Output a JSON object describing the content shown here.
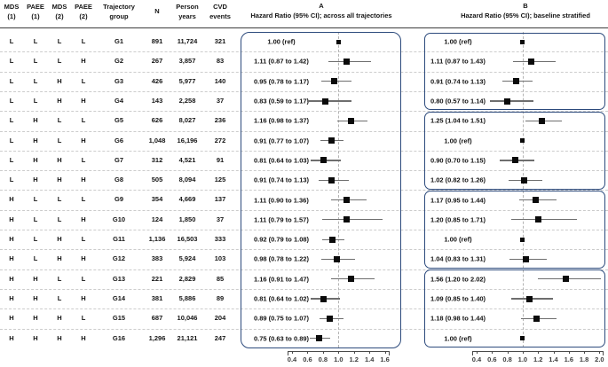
{
  "chart_data": {
    "type": "scatter",
    "subtype": "forest_plot",
    "columns": [
      {
        "line1": "MDS",
        "line2": "(1)"
      },
      {
        "line1": "PAEE",
        "line2": "(1)"
      },
      {
        "line1": "MDS",
        "line2": "(2)"
      },
      {
        "line1": "PAEE",
        "line2": "(2)"
      },
      {
        "line1": "Trajectory",
        "line2": "group"
      },
      {
        "line1": "N",
        "line2": ""
      },
      {
        "line1": "Person",
        "line2": "years"
      },
      {
        "line1": "CVD",
        "line2": "events"
      }
    ],
    "panel_a": {
      "label": "A",
      "subtitle": "Hazard Ratio (95% CI); across all trajectories",
      "axis_ticks": [
        0.4,
        0.6,
        0.8,
        1.0,
        1.2,
        1.4,
        1.6
      ],
      "xlim": [
        0.4,
        1.6
      ],
      "ref_line": 1.0
    },
    "panel_b": {
      "label": "B",
      "subtitle": "Hazard Ratio (95% CI); baseline stratified",
      "axis_ticks": [
        0.4,
        0.6,
        0.8,
        1.0,
        1.2,
        1.4,
        1.6,
        1.8,
        2.0
      ],
      "xlim": [
        0.4,
        2.0
      ],
      "ref_line": 1.0,
      "strata": [
        [
          0,
          3
        ],
        [
          4,
          7
        ],
        [
          8,
          11
        ],
        [
          12,
          15
        ]
      ]
    },
    "rows": [
      {
        "mds1": "L",
        "paee1": "L",
        "mds2": "L",
        "paee2": "L",
        "group": "G1",
        "n": "891",
        "person_years": "11,724",
        "cvd_events": "321",
        "a": {
          "label": "1.00 (ref)",
          "hr": 1.0,
          "lo": null,
          "hi": null,
          "ref": true
        },
        "b": {
          "label": "1.00 (ref)",
          "hr": 1.0,
          "lo": null,
          "hi": null,
          "ref": true
        }
      },
      {
        "mds1": "L",
        "paee1": "L",
        "mds2": "L",
        "paee2": "H",
        "group": "G2",
        "n": "267",
        "person_years": "3,857",
        "cvd_events": "83",
        "a": {
          "label": "1.11 (0.87 to 1.42)",
          "hr": 1.11,
          "lo": 0.87,
          "hi": 1.42,
          "ref": false
        },
        "b": {
          "label": "1.11 (0.87 to 1.43)",
          "hr": 1.11,
          "lo": 0.87,
          "hi": 1.43,
          "ref": false
        }
      },
      {
        "mds1": "L",
        "paee1": "L",
        "mds2": "H",
        "paee2": "L",
        "group": "G3",
        "n": "426",
        "person_years": "5,977",
        "cvd_events": "140",
        "a": {
          "label": "0.95 (0.78 to 1.17)",
          "hr": 0.95,
          "lo": 0.78,
          "hi": 1.17,
          "ref": false
        },
        "b": {
          "label": "0.91 (0.74 to 1.13)",
          "hr": 0.91,
          "lo": 0.74,
          "hi": 1.13,
          "ref": false
        }
      },
      {
        "mds1": "L",
        "paee1": "L",
        "mds2": "H",
        "paee2": "H",
        "group": "G4",
        "n": "143",
        "person_years": "2,258",
        "cvd_events": "37",
        "a": {
          "label": "0.83 (0.59 to 1.17)",
          "hr": 0.83,
          "lo": 0.59,
          "hi": 1.17,
          "ref": false
        },
        "b": {
          "label": "0.80 (0.57 to 1.14)",
          "hr": 0.8,
          "lo": 0.57,
          "hi": 1.14,
          "ref": false
        }
      },
      {
        "mds1": "L",
        "paee1": "H",
        "mds2": "L",
        "paee2": "L",
        "group": "G5",
        "n": "626",
        "person_years": "8,027",
        "cvd_events": "236",
        "a": {
          "label": "1.16 (0.98 to 1.37)",
          "hr": 1.16,
          "lo": 0.98,
          "hi": 1.37,
          "ref": false
        },
        "b": {
          "label": "1.25 (1.04 to 1.51)",
          "hr": 1.25,
          "lo": 1.04,
          "hi": 1.51,
          "ref": false
        }
      },
      {
        "mds1": "L",
        "paee1": "H",
        "mds2": "L",
        "paee2": "H",
        "group": "G6",
        "n": "1,048",
        "person_years": "16,196",
        "cvd_events": "272",
        "a": {
          "label": "0.91 (0.77 to 1.07)",
          "hr": 0.91,
          "lo": 0.77,
          "hi": 1.07,
          "ref": false
        },
        "b": {
          "label": "1.00 (ref)",
          "hr": 1.0,
          "lo": null,
          "hi": null,
          "ref": true
        }
      },
      {
        "mds1": "L",
        "paee1": "H",
        "mds2": "H",
        "paee2": "L",
        "group": "G7",
        "n": "312",
        "person_years": "4,521",
        "cvd_events": "91",
        "a": {
          "label": "0.81 (0.64 to 1.03)",
          "hr": 0.81,
          "lo": 0.64,
          "hi": 1.03,
          "ref": false
        },
        "b": {
          "label": "0.90 (0.70 to 1.15)",
          "hr": 0.9,
          "lo": 0.7,
          "hi": 1.15,
          "ref": false
        }
      },
      {
        "mds1": "L",
        "paee1": "H",
        "mds2": "H",
        "paee2": "H",
        "group": "G8",
        "n": "505",
        "person_years": "8,094",
        "cvd_events": "125",
        "a": {
          "label": "0.91 (0.74 to 1.13)",
          "hr": 0.91,
          "lo": 0.74,
          "hi": 1.13,
          "ref": false
        },
        "b": {
          "label": "1.02 (0.82 to 1.26)",
          "hr": 1.02,
          "lo": 0.82,
          "hi": 1.26,
          "ref": false
        }
      },
      {
        "mds1": "H",
        "paee1": "L",
        "mds2": "L",
        "paee2": "L",
        "group": "G9",
        "n": "354",
        "person_years": "4,669",
        "cvd_events": "137",
        "a": {
          "label": "1.11 (0.90 to 1.36)",
          "hr": 1.11,
          "lo": 0.9,
          "hi": 1.36,
          "ref": false
        },
        "b": {
          "label": "1.17 (0.95 to 1.44)",
          "hr": 1.17,
          "lo": 0.95,
          "hi": 1.44,
          "ref": false
        }
      },
      {
        "mds1": "H",
        "paee1": "L",
        "mds2": "L",
        "paee2": "H",
        "group": "G10",
        "n": "124",
        "person_years": "1,850",
        "cvd_events": "37",
        "a": {
          "label": "1.11 (0.79 to 1.57)",
          "hr": 1.11,
          "lo": 0.79,
          "hi": 1.57,
          "ref": false
        },
        "b": {
          "label": "1.20 (0.85 to 1.71)",
          "hr": 1.2,
          "lo": 0.85,
          "hi": 1.71,
          "ref": false
        }
      },
      {
        "mds1": "H",
        "paee1": "L",
        "mds2": "H",
        "paee2": "L",
        "group": "G11",
        "n": "1,136",
        "person_years": "16,503",
        "cvd_events": "333",
        "a": {
          "label": "0.92 (0.79 to 1.08)",
          "hr": 0.92,
          "lo": 0.79,
          "hi": 1.08,
          "ref": false
        },
        "b": {
          "label": "1.00 (ref)",
          "hr": 1.0,
          "lo": null,
          "hi": null,
          "ref": true
        }
      },
      {
        "mds1": "H",
        "paee1": "L",
        "mds2": "H",
        "paee2": "H",
        "group": "G12",
        "n": "383",
        "person_years": "5,924",
        "cvd_events": "103",
        "a": {
          "label": "0.98 (0.78 to 1.22)",
          "hr": 0.98,
          "lo": 0.78,
          "hi": 1.22,
          "ref": false
        },
        "b": {
          "label": "1.04 (0.83 to 1.31)",
          "hr": 1.04,
          "lo": 0.83,
          "hi": 1.31,
          "ref": false
        }
      },
      {
        "mds1": "H",
        "paee1": "H",
        "mds2": "L",
        "paee2": "L",
        "group": "G13",
        "n": "221",
        "person_years": "2,829",
        "cvd_events": "85",
        "a": {
          "label": "1.16 (0.91 to 1.47)",
          "hr": 1.16,
          "lo": 0.91,
          "hi": 1.47,
          "ref": false
        },
        "b": {
          "label": "1.56 (1.20 to 2.02)",
          "hr": 1.56,
          "lo": 1.2,
          "hi": 2.02,
          "ref": false
        }
      },
      {
        "mds1": "H",
        "paee1": "H",
        "mds2": "L",
        "paee2": "H",
        "group": "G14",
        "n": "381",
        "person_years": "5,886",
        "cvd_events": "89",
        "a": {
          "label": "0.81 (0.64 to 1.02)",
          "hr": 0.81,
          "lo": 0.64,
          "hi": 1.02,
          "ref": false
        },
        "b": {
          "label": "1.09 (0.85 to 1.40)",
          "hr": 1.09,
          "lo": 0.85,
          "hi": 1.4,
          "ref": false
        }
      },
      {
        "mds1": "H",
        "paee1": "H",
        "mds2": "H",
        "paee2": "L",
        "group": "G15",
        "n": "687",
        "person_years": "10,046",
        "cvd_events": "204",
        "a": {
          "label": "0.89 (0.75 to 1.07)",
          "hr": 0.89,
          "lo": 0.75,
          "hi": 1.07,
          "ref": false
        },
        "b": {
          "label": "1.18 (0.98 to 1.44)",
          "hr": 1.18,
          "lo": 0.98,
          "hi": 1.44,
          "ref": false
        }
      },
      {
        "mds1": "H",
        "paee1": "H",
        "mds2": "H",
        "paee2": "H",
        "group": "G16",
        "n": "1,296",
        "person_years": "21,121",
        "cvd_events": "247",
        "a": {
          "label": "0.75 (0.63 to 0.89)",
          "hr": 0.75,
          "lo": 0.63,
          "hi": 0.89,
          "ref": false
        },
        "b": {
          "label": "1.00 (ref)",
          "hr": 1.0,
          "lo": null,
          "hi": null,
          "ref": true
        }
      }
    ],
    "colors": {
      "box_border": "#2c4a7c",
      "marker": "#0b0b0b",
      "ci_line": "#6e6e6e",
      "ref_line": "#b4b4b4",
      "row_divider": "#cccccc",
      "axis": "#4a4a4a",
      "text": "#141414"
    }
  }
}
